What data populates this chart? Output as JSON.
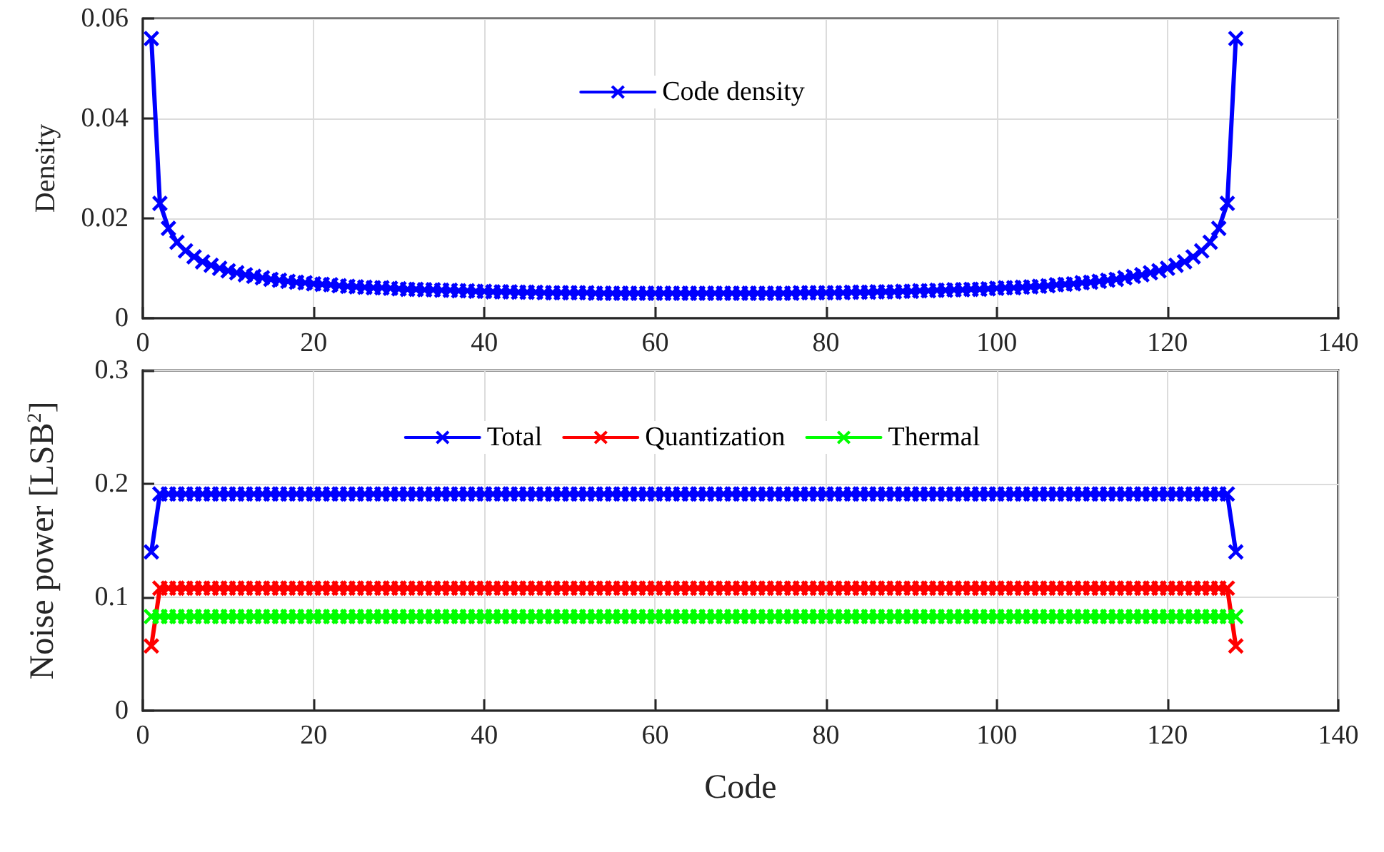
{
  "chart_data": [
    {
      "type": "line",
      "ylabel": "Density",
      "xlim": [
        0,
        140
      ],
      "xticks": [
        0,
        20,
        40,
        60,
        80,
        100,
        120,
        140
      ],
      "ylim": [
        0,
        0.06
      ],
      "yticks": [
        0,
        0.02,
        0.04,
        0.06
      ],
      "grid": true,
      "legend": "top",
      "marker": "cross",
      "line_style": "solid",
      "x": [
        1,
        2,
        3,
        4,
        5,
        6,
        7,
        8,
        9,
        10,
        11,
        12,
        13,
        14,
        15,
        16,
        17,
        18,
        19,
        20,
        21,
        22,
        23,
        24,
        25,
        26,
        27,
        28,
        29,
        30,
        31,
        32,
        33,
        34,
        35,
        36,
        37,
        38,
        39,
        40,
        41,
        42,
        43,
        44,
        45,
        46,
        47,
        48,
        49,
        50,
        51,
        52,
        53,
        54,
        55,
        56,
        57,
        58,
        59,
        60,
        61,
        62,
        63,
        64,
        65,
        66,
        67,
        68,
        69,
        70,
        71,
        72,
        73,
        74,
        75,
        76,
        77,
        78,
        79,
        80,
        81,
        82,
        83,
        84,
        85,
        86,
        87,
        88,
        89,
        90,
        91,
        92,
        93,
        94,
        95,
        96,
        97,
        98,
        99,
        100,
        101,
        102,
        103,
        104,
        105,
        106,
        107,
        108,
        109,
        110,
        111,
        112,
        113,
        114,
        115,
        116,
        117,
        118,
        119,
        120,
        121,
        122,
        123,
        124,
        125,
        126,
        127,
        128
      ],
      "series": [
        {
          "name": "Code density",
          "color": "#0000ff",
          "values": [
            0.056,
            0.023,
            0.018,
            0.0152,
            0.0135,
            0.0123,
            0.0113,
            0.0106,
            0.01,
            0.0095,
            0.0091,
            0.0087,
            0.0084,
            0.0081,
            0.0078,
            0.0076,
            0.0074,
            0.0072,
            0.0071,
            0.0069,
            0.0068,
            0.0067,
            0.0065,
            0.0064,
            0.0063,
            0.0062,
            0.0061,
            0.0061,
            0.006,
            0.0059,
            0.0058,
            0.0058,
            0.0057,
            0.0057,
            0.0056,
            0.0056,
            0.0055,
            0.0055,
            0.0054,
            0.0054,
            0.0053,
            0.0053,
            0.0053,
            0.0052,
            0.0052,
            0.0052,
            0.0051,
            0.0051,
            0.0051,
            0.0051,
            0.0051,
            0.0051,
            0.005,
            0.005,
            0.005,
            0.005,
            0.005,
            0.005,
            0.005,
            0.005,
            0.005,
            0.005,
            0.005,
            0.005,
            0.005,
            0.005,
            0.005,
            0.005,
            0.005,
            0.005,
            0.005,
            0.005,
            0.005,
            0.005,
            0.005,
            0.005,
            0.0051,
            0.0051,
            0.0051,
            0.0051,
            0.0051,
            0.0051,
            0.0052,
            0.0052,
            0.0052,
            0.0053,
            0.0053,
            0.0053,
            0.0054,
            0.0054,
            0.0055,
            0.0055,
            0.0056,
            0.0056,
            0.0057,
            0.0057,
            0.0058,
            0.0058,
            0.0059,
            0.006,
            0.0061,
            0.0061,
            0.0062,
            0.0063,
            0.0064,
            0.0065,
            0.0067,
            0.0068,
            0.0069,
            0.0071,
            0.0072,
            0.0074,
            0.0076,
            0.0078,
            0.0081,
            0.0084,
            0.0087,
            0.0091,
            0.0095,
            0.01,
            0.0106,
            0.0113,
            0.0123,
            0.0135,
            0.0152,
            0.018,
            0.023,
            0.056
          ]
        }
      ]
    },
    {
      "type": "line",
      "xlabel": "Code",
      "ylabel": "Noise power [LSB$^{2}$]",
      "xlim": [
        0,
        140
      ],
      "xticks": [
        0,
        20,
        40,
        60,
        80,
        100,
        120,
        140
      ],
      "ylim": [
        0,
        0.3
      ],
      "yticks": [
        0,
        0.1,
        0.2,
        0.3
      ],
      "grid": true,
      "legend": "top",
      "marker": "cross",
      "line_style": "solid",
      "x": [
        1,
        2,
        3,
        4,
        5,
        6,
        7,
        8,
        9,
        10,
        11,
        12,
        13,
        14,
        15,
        16,
        17,
        18,
        19,
        20,
        21,
        22,
        23,
        24,
        25,
        26,
        27,
        28,
        29,
        30,
        31,
        32,
        33,
        34,
        35,
        36,
        37,
        38,
        39,
        40,
        41,
        42,
        43,
        44,
        45,
        46,
        47,
        48,
        49,
        50,
        51,
        52,
        53,
        54,
        55,
        56,
        57,
        58,
        59,
        60,
        61,
        62,
        63,
        64,
        65,
        66,
        67,
        68,
        69,
        70,
        71,
        72,
        73,
        74,
        75,
        76,
        77,
        78,
        79,
        80,
        81,
        82,
        83,
        84,
        85,
        86,
        87,
        88,
        89,
        90,
        91,
        92,
        93,
        94,
        95,
        96,
        97,
        98,
        99,
        100,
        101,
        102,
        103,
        104,
        105,
        106,
        107,
        108,
        109,
        110,
        111,
        112,
        113,
        114,
        115,
        116,
        117,
        118,
        119,
        120,
        121,
        122,
        123,
        124,
        125,
        126,
        127,
        128
      ],
      "series": [
        {
          "name": "Total",
          "color": "#0000ff",
          "values": [
            0.14,
            0.191,
            0.191,
            0.191,
            0.191,
            0.191,
            0.191,
            0.191,
            0.191,
            0.191,
            0.191,
            0.191,
            0.191,
            0.191,
            0.191,
            0.191,
            0.191,
            0.191,
            0.191,
            0.191,
            0.191,
            0.191,
            0.191,
            0.191,
            0.191,
            0.191,
            0.191,
            0.191,
            0.191,
            0.191,
            0.191,
            0.191,
            0.191,
            0.191,
            0.191,
            0.191,
            0.191,
            0.191,
            0.191,
            0.191,
            0.191,
            0.191,
            0.191,
            0.191,
            0.191,
            0.191,
            0.191,
            0.191,
            0.191,
            0.191,
            0.191,
            0.191,
            0.191,
            0.191,
            0.191,
            0.191,
            0.191,
            0.191,
            0.191,
            0.191,
            0.191,
            0.191,
            0.191,
            0.191,
            0.191,
            0.191,
            0.191,
            0.191,
            0.191,
            0.191,
            0.191,
            0.191,
            0.191,
            0.191,
            0.191,
            0.191,
            0.191,
            0.191,
            0.191,
            0.191,
            0.191,
            0.191,
            0.191,
            0.191,
            0.191,
            0.191,
            0.191,
            0.191,
            0.191,
            0.191,
            0.191,
            0.191,
            0.191,
            0.191,
            0.191,
            0.191,
            0.191,
            0.191,
            0.191,
            0.191,
            0.191,
            0.191,
            0.191,
            0.191,
            0.191,
            0.191,
            0.191,
            0.191,
            0.191,
            0.191,
            0.191,
            0.191,
            0.191,
            0.191,
            0.191,
            0.191,
            0.191,
            0.191,
            0.191,
            0.191,
            0.191,
            0.191,
            0.191,
            0.191,
            0.191,
            0.191,
            0.191,
            0.14
          ]
        },
        {
          "name": "Quantization",
          "color": "#ff0000",
          "values": [
            0.057,
            0.108,
            0.108,
            0.108,
            0.108,
            0.108,
            0.108,
            0.108,
            0.108,
            0.108,
            0.108,
            0.108,
            0.108,
            0.108,
            0.108,
            0.108,
            0.108,
            0.108,
            0.108,
            0.108,
            0.108,
            0.108,
            0.108,
            0.108,
            0.108,
            0.108,
            0.108,
            0.108,
            0.108,
            0.108,
            0.108,
            0.108,
            0.108,
            0.108,
            0.108,
            0.108,
            0.108,
            0.108,
            0.108,
            0.108,
            0.108,
            0.108,
            0.108,
            0.108,
            0.108,
            0.108,
            0.108,
            0.108,
            0.108,
            0.108,
            0.108,
            0.108,
            0.108,
            0.108,
            0.108,
            0.108,
            0.108,
            0.108,
            0.108,
            0.108,
            0.108,
            0.108,
            0.108,
            0.108,
            0.108,
            0.108,
            0.108,
            0.108,
            0.108,
            0.108,
            0.108,
            0.108,
            0.108,
            0.108,
            0.108,
            0.108,
            0.108,
            0.108,
            0.108,
            0.108,
            0.108,
            0.108,
            0.108,
            0.108,
            0.108,
            0.108,
            0.108,
            0.108,
            0.108,
            0.108,
            0.108,
            0.108,
            0.108,
            0.108,
            0.108,
            0.108,
            0.108,
            0.108,
            0.108,
            0.108,
            0.108,
            0.108,
            0.108,
            0.108,
            0.108,
            0.108,
            0.108,
            0.108,
            0.108,
            0.108,
            0.108,
            0.108,
            0.108,
            0.108,
            0.108,
            0.108,
            0.108,
            0.108,
            0.108,
            0.108,
            0.108,
            0.108,
            0.108,
            0.108,
            0.108,
            0.108,
            0.108,
            0.057
          ]
        },
        {
          "name": "Thermal",
          "color": "#00ff00",
          "values": [
            0.083,
            0.083,
            0.083,
            0.083,
            0.083,
            0.083,
            0.083,
            0.083,
            0.083,
            0.083,
            0.083,
            0.083,
            0.083,
            0.083,
            0.083,
            0.083,
            0.083,
            0.083,
            0.083,
            0.083,
            0.083,
            0.083,
            0.083,
            0.083,
            0.083,
            0.083,
            0.083,
            0.083,
            0.083,
            0.083,
            0.083,
            0.083,
            0.083,
            0.083,
            0.083,
            0.083,
            0.083,
            0.083,
            0.083,
            0.083,
            0.083,
            0.083,
            0.083,
            0.083,
            0.083,
            0.083,
            0.083,
            0.083,
            0.083,
            0.083,
            0.083,
            0.083,
            0.083,
            0.083,
            0.083,
            0.083,
            0.083,
            0.083,
            0.083,
            0.083,
            0.083,
            0.083,
            0.083,
            0.083,
            0.083,
            0.083,
            0.083,
            0.083,
            0.083,
            0.083,
            0.083,
            0.083,
            0.083,
            0.083,
            0.083,
            0.083,
            0.083,
            0.083,
            0.083,
            0.083,
            0.083,
            0.083,
            0.083,
            0.083,
            0.083,
            0.083,
            0.083,
            0.083,
            0.083,
            0.083,
            0.083,
            0.083,
            0.083,
            0.083,
            0.083,
            0.083,
            0.083,
            0.083,
            0.083,
            0.083,
            0.083,
            0.083,
            0.083,
            0.083,
            0.083,
            0.083,
            0.083,
            0.083,
            0.083,
            0.083,
            0.083,
            0.083,
            0.083,
            0.083,
            0.083,
            0.083,
            0.083,
            0.083,
            0.083,
            0.083,
            0.083,
            0.083,
            0.083,
            0.083,
            0.083,
            0.083,
            0.083,
            0.083
          ]
        }
      ]
    }
  ]
}
